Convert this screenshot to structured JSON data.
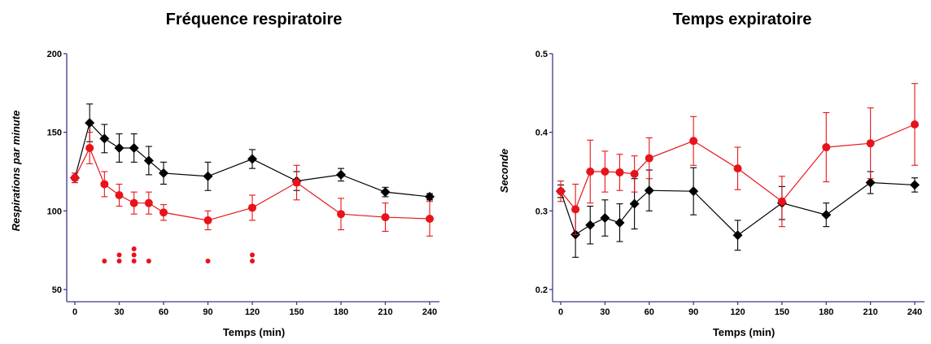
{
  "colors": {
    "black_series": "#000000",
    "red_series": "#e8131a",
    "axis": "#3a3a8c"
  },
  "chart_data": [
    {
      "type": "line",
      "title": "Fréquence respiratoire",
      "xlabel": "Temps (min)",
      "ylabel": "Respirations par minute",
      "xlim": [
        0,
        240
      ],
      "ylim": [
        50,
        200
      ],
      "x_ticks": [
        0,
        30,
        60,
        90,
        120,
        150,
        180,
        210,
        240
      ],
      "y_ticks": [
        50,
        100,
        150,
        200
      ],
      "y_tick_labels": [
        "50",
        "100",
        "150",
        "200"
      ],
      "grid": false,
      "legend": "none",
      "series": [
        {
          "marker": "diamond",
          "color": "#000000",
          "x": [
            0,
            10,
            20,
            30,
            40,
            50,
            60,
            90,
            120,
            150,
            180,
            210,
            240
          ],
          "y": [
            121,
            156,
            146,
            140,
            140,
            132,
            124,
            122,
            133,
            119,
            123,
            112,
            109
          ],
          "err": [
            3,
            12,
            9,
            9,
            9,
            9,
            7,
            9,
            6,
            6,
            4,
            3,
            2
          ]
        },
        {
          "marker": "circle",
          "color": "#e8131a",
          "x": [
            0,
            10,
            20,
            30,
            40,
            50,
            60,
            90,
            120,
            150,
            180,
            210,
            240
          ],
          "y": [
            121,
            140,
            117,
            110,
            105,
            105,
            99,
            94,
            102,
            118,
            98,
            96,
            95
          ],
          "err": [
            3,
            10,
            8,
            7,
            7,
            7,
            5,
            6,
            8,
            11,
            10,
            9,
            11
          ]
        }
      ],
      "significance_dots": [
        {
          "x": 20,
          "count": 1
        },
        {
          "x": 30,
          "count": 2
        },
        {
          "x": 40,
          "count": 3
        },
        {
          "x": 50,
          "count": 1
        },
        {
          "x": 90,
          "count": 1
        },
        {
          "x": 120,
          "count": 2
        }
      ]
    },
    {
      "type": "line",
      "title": "Temps expiratoire",
      "xlabel": "Temps (min)",
      "ylabel": "Seconde",
      "xlim": [
        0,
        240
      ],
      "ylim": [
        0.2,
        0.5
      ],
      "x_ticks": [
        0,
        30,
        60,
        90,
        120,
        150,
        180,
        210,
        240
      ],
      "y_ticks": [
        0.2,
        0.3,
        0.4,
        0.5
      ],
      "y_tick_labels": [
        "0.2",
        "0.3",
        "0.4",
        "0.5"
      ],
      "grid": false,
      "legend": "none",
      "series": [
        {
          "marker": "diamond",
          "color": "#000000",
          "x": [
            0,
            10,
            20,
            30,
            40,
            50,
            60,
            90,
            120,
            150,
            180,
            210,
            240
          ],
          "y": [
            0.325,
            0.27,
            0.282,
            0.291,
            0.285,
            0.309,
            0.326,
            0.325,
            0.269,
            0.31,
            0.295,
            0.336,
            0.333
          ],
          "err": [
            0.008,
            0.029,
            0.024,
            0.023,
            0.024,
            0.032,
            0.026,
            0.03,
            0.019,
            0.021,
            0.015,
            0.014,
            0.009
          ]
        },
        {
          "marker": "circle",
          "color": "#e8131a",
          "x": [
            0,
            10,
            20,
            30,
            40,
            50,
            60,
            90,
            120,
            150,
            180,
            210,
            240
          ],
          "y": [
            0.325,
            0.302,
            0.35,
            0.35,
            0.349,
            0.347,
            0.367,
            0.389,
            0.354,
            0.312,
            0.381,
            0.386,
            0.41
          ],
          "err": [
            0.013,
            0.032,
            0.04,
            0.026,
            0.023,
            0.023,
            0.026,
            0.031,
            0.027,
            0.032,
            0.044,
            0.045,
            0.052
          ]
        }
      ]
    }
  ]
}
